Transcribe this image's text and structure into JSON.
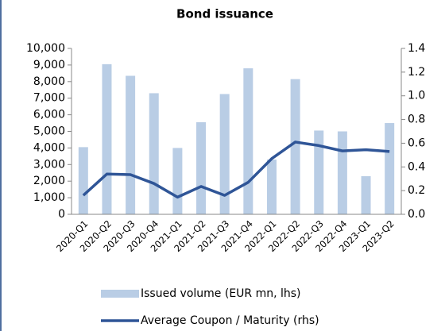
{
  "chart_data": {
    "type": "bar_line",
    "title": "Bond issuance",
    "categories": [
      "2020-Q1",
      "2020-Q2",
      "2020-Q3",
      "2020-Q4",
      "2021-Q1",
      "2021-Q2",
      "2021-Q3",
      "2021-Q4",
      "2022-Q1",
      "2022-Q2",
      "2022-Q3",
      "2022-Q4",
      "2023-Q1",
      "2023-Q2"
    ],
    "series": [
      {
        "name": "Issued volume (EUR mn, lhs)",
        "type": "bar",
        "color": "#b9cde5",
        "values": [
          4050,
          9050,
          8350,
          7300,
          4000,
          5550,
          7250,
          8800,
          3300,
          8150,
          5050,
          5000,
          2300,
          5500
        ]
      },
      {
        "name": "Average Coupon / Maturity (rhs)",
        "type": "line",
        "axis": "y2",
        "color": "#2f5597",
        "values": [
          0.16,
          0.34,
          0.335,
          0.26,
          0.145,
          0.235,
          0.16,
          0.27,
          0.47,
          0.61,
          0.58,
          0.535,
          0.545,
          0.53
        ]
      }
    ],
    "ylim": [
      0,
      10000
    ],
    "yticks": [
      0,
      {
        "value": 1000,
        "label": "1,000"
      },
      {
        "value": 2000,
        "label": "2,000"
      },
      {
        "value": 3000,
        "label": "3,000"
      },
      {
        "value": 4000,
        "label": "4,000"
      },
      {
        "value": 5000,
        "label": "5,000"
      },
      {
        "value": 6000,
        "label": "6,000"
      },
      {
        "value": 7000,
        "label": "7,000"
      },
      {
        "value": 8000,
        "label": "8,000"
      },
      {
        "value": 9000,
        "label": "9,000"
      },
      {
        "value": 10000,
        "label": "10,000"
      }
    ],
    "y2lim": [
      0,
      1.4
    ],
    "y2ticks": [
      {
        "value": 0,
        "label": "0.0"
      },
      0.2,
      0.4,
      0.6,
      0.8,
      {
        "value": 1,
        "label": "1.0"
      },
      1.2,
      1.4
    ],
    "legend": "bottom"
  }
}
